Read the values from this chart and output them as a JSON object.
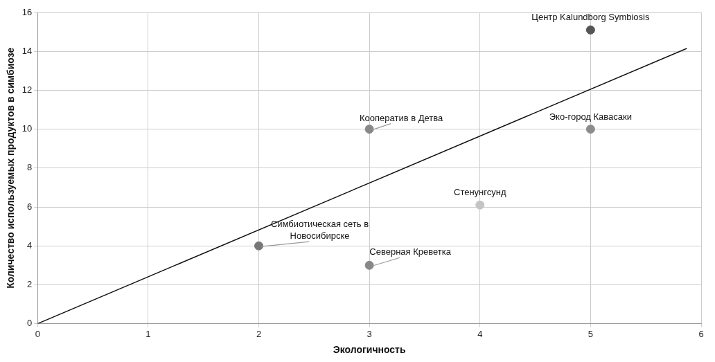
{
  "chart_data": {
    "type": "scatter",
    "xlabel": "Экологичность",
    "ylabel": "Количество используемых продуктов в симбиозе",
    "xlim": [
      0,
      6
    ],
    "xticks": [
      0,
      1,
      2,
      3,
      4,
      5,
      6
    ],
    "ylim": [
      0,
      16
    ],
    "yticks": [
      0,
      2,
      4,
      6,
      8,
      10,
      12,
      14,
      16
    ],
    "grid": true,
    "series": [
      {
        "name": "Центр Kalundborg Symbiosis",
        "color": "#555555",
        "marker": "circle",
        "x": [
          5
        ],
        "values": [
          15.1
        ]
      },
      {
        "name": "Кооператив в Детва",
        "color": "#888888",
        "marker": "circle",
        "x": [
          3
        ],
        "values": [
          10
        ]
      },
      {
        "name": "Эко-город Кавасаки",
        "color": "#8c8c8c",
        "marker": "circle",
        "x": [
          5
        ],
        "values": [
          10
        ]
      },
      {
        "name": "Стенунгсунд",
        "color": "#c4c4c4",
        "marker": "circle",
        "x": [
          4
        ],
        "values": [
          6.1
        ]
      },
      {
        "name": "Симбиотическая сеть в Новосибирске",
        "color": "#777777",
        "marker": "circle",
        "x": [
          2
        ],
        "values": [
          4
        ]
      },
      {
        "name": "Северная Креветка",
        "color": "#888888",
        "marker": "circle",
        "x": [
          3
        ],
        "values": [
          3
        ]
      },
      {
        "type": "line",
        "color": "#111111",
        "marker": "none",
        "x": [
          0,
          5.87
        ],
        "values": [
          0,
          14.15
        ]
      }
    ]
  }
}
